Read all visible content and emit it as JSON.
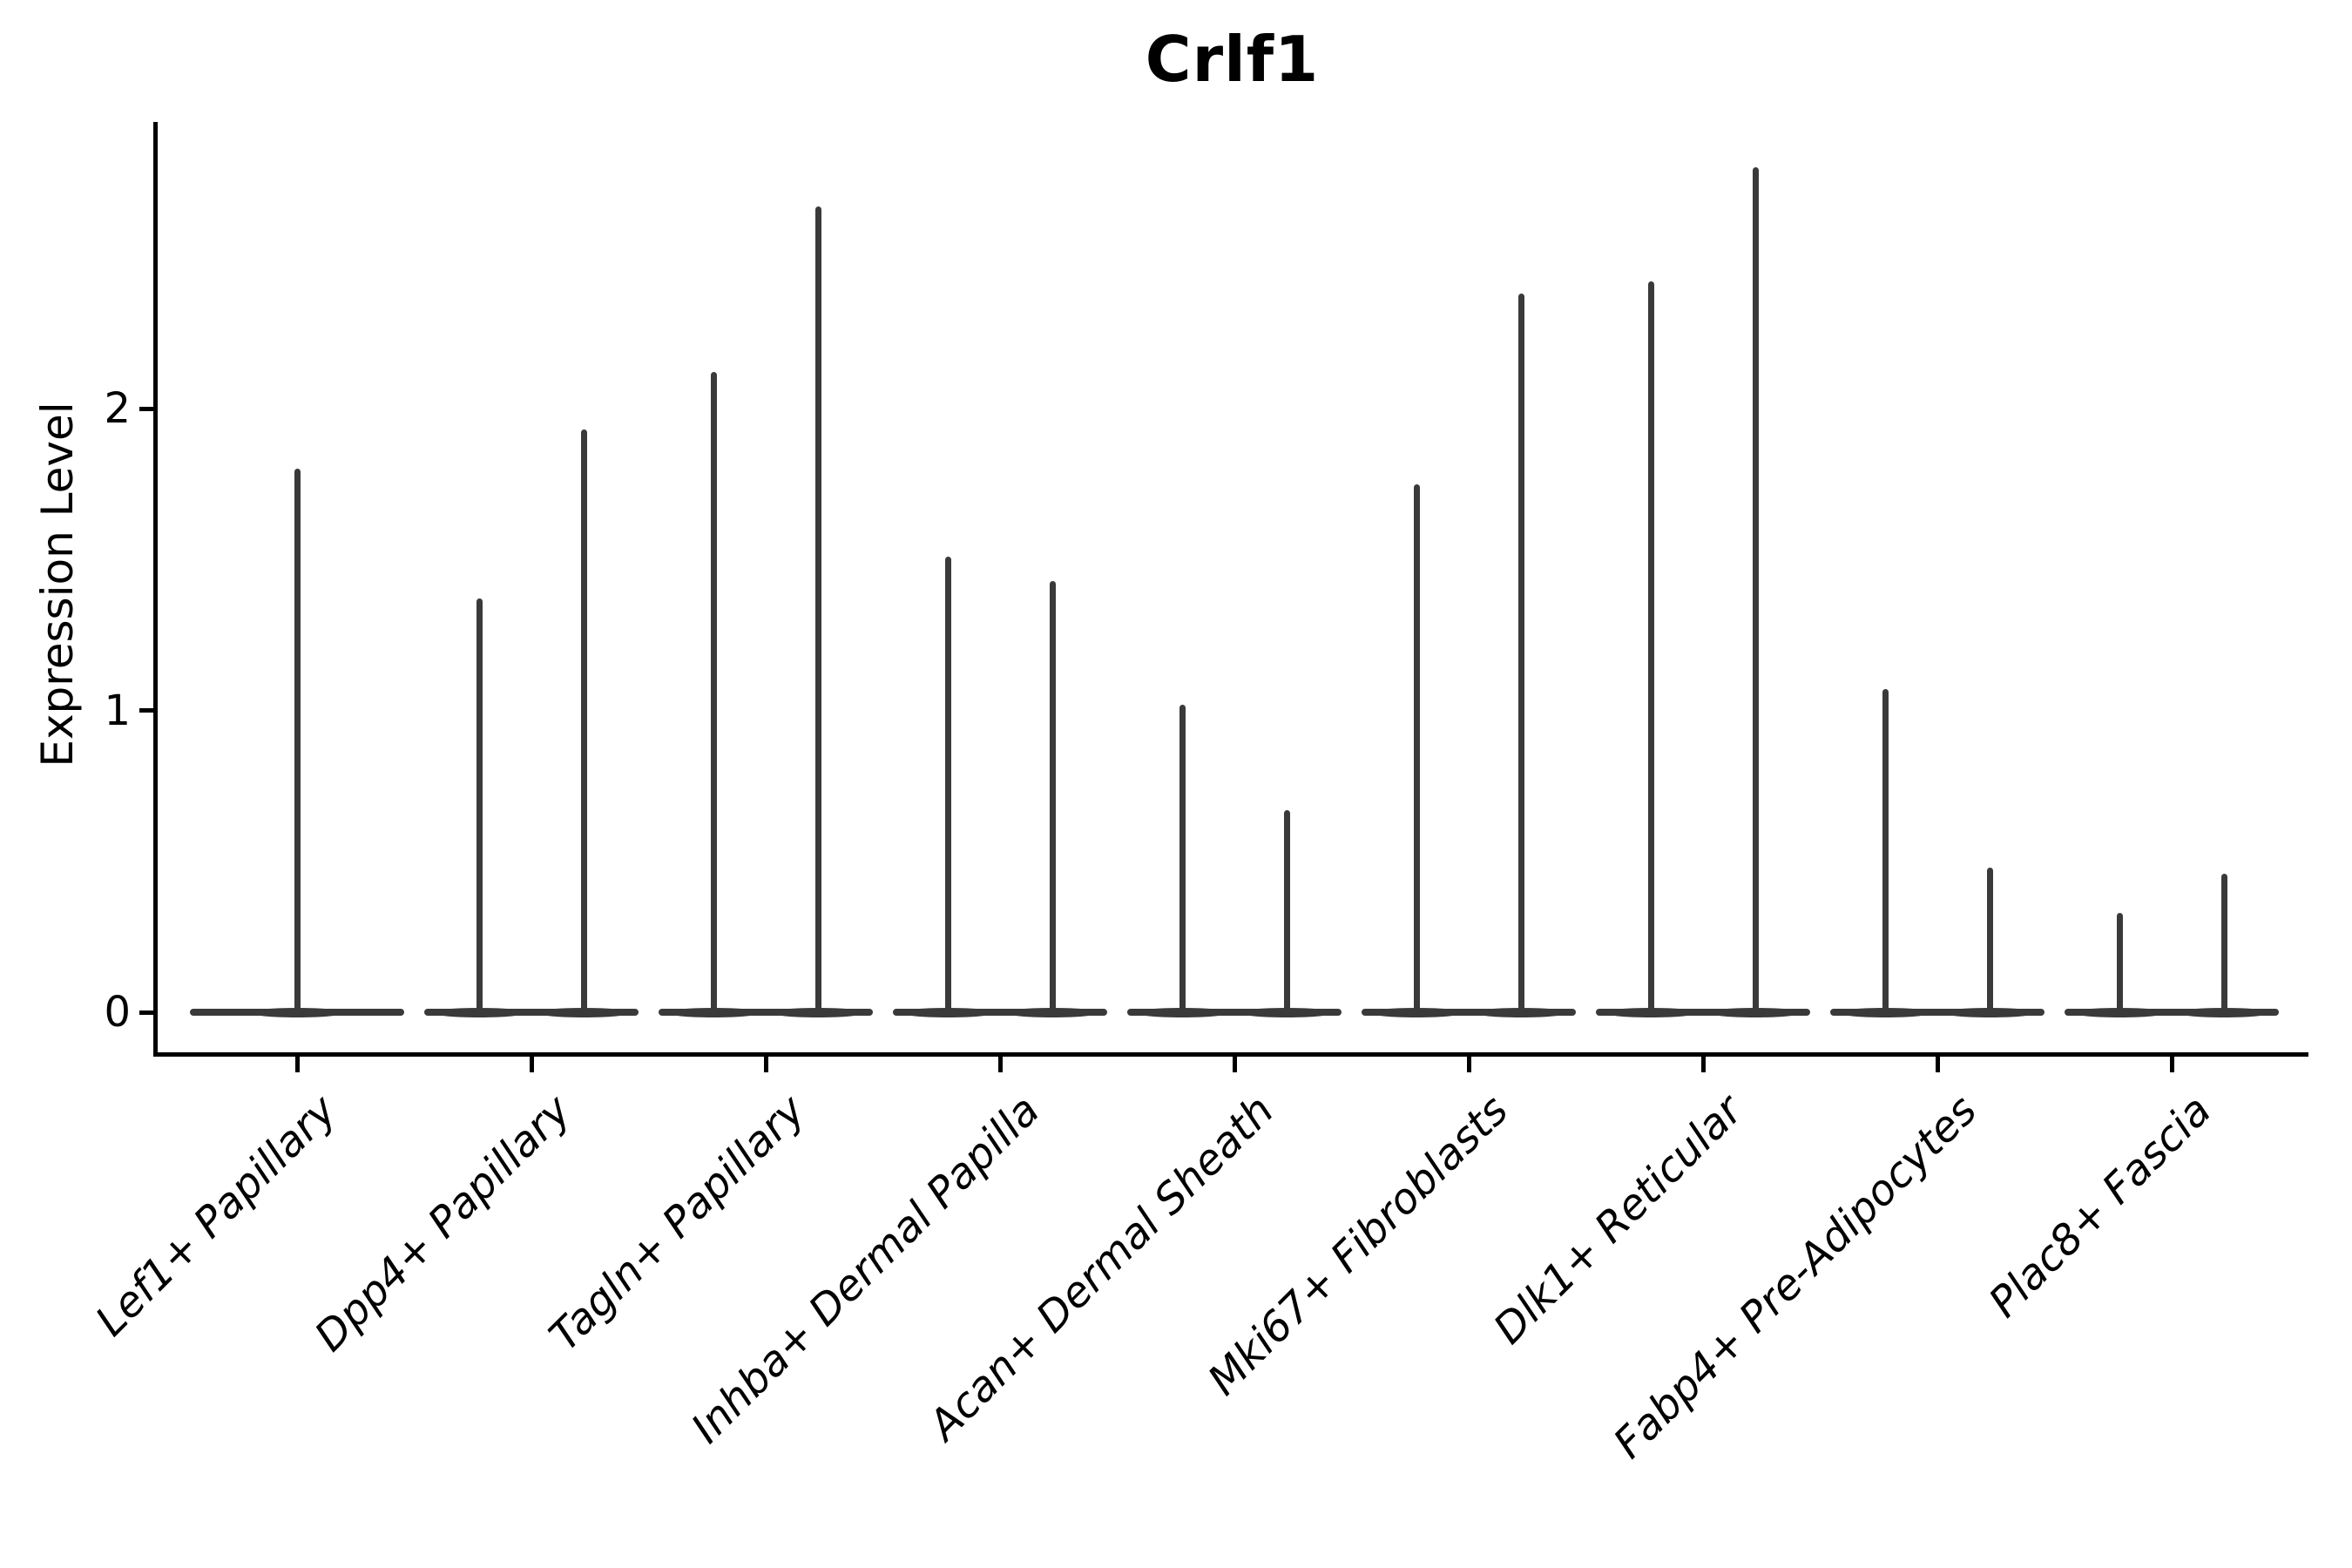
{
  "figure": {
    "background": "#ffffff"
  },
  "chart_data": {
    "type": "violin",
    "title": "Crlf1",
    "ylabel": "Expression Level",
    "xlabel": "",
    "legend": "none",
    "grid": false,
    "y_axis": {
      "ticks": [
        0,
        1,
        2
      ],
      "range": [
        0,
        2.95
      ]
    },
    "categories": [
      "Lef1+ Papillary",
      "Dpp4+ Papillary",
      "Tagln+ Papillary",
      "Inhba+ Dermal Papilla",
      "Acan+ Dermal Sheath",
      "Mki67+ Fibroblasts",
      "Dlk1+ Reticular",
      "Fabp4+ Pre-Adipocytes",
      "Plac8+ Fascia"
    ],
    "violins": [
      {
        "category": "Lef1+ Papillary",
        "spikes": [
          {
            "group": "center",
            "max": 1.8
          }
        ]
      },
      {
        "category": "Dpp4+ Papillary",
        "spikes": [
          {
            "group": "left",
            "max": 1.37
          },
          {
            "group": "right",
            "max": 1.93
          }
        ]
      },
      {
        "category": "Tagln+ Papillary",
        "spikes": [
          {
            "group": "left",
            "max": 2.12
          },
          {
            "group": "right",
            "max": 2.67
          }
        ]
      },
      {
        "category": "Inhba+ Dermal Papilla",
        "spikes": [
          {
            "group": "left",
            "max": 1.51
          },
          {
            "group": "right",
            "max": 1.43
          }
        ]
      },
      {
        "category": "Acan+ Dermal Sheath",
        "spikes": [
          {
            "group": "left",
            "max": 1.02
          },
          {
            "group": "right",
            "max": 0.67
          }
        ]
      },
      {
        "category": "Mki67+ Fibroblasts",
        "spikes": [
          {
            "group": "left",
            "max": 1.75
          },
          {
            "group": "right",
            "max": 2.38
          }
        ]
      },
      {
        "category": "Dlk1+ Reticular",
        "spikes": [
          {
            "group": "left",
            "max": 2.42
          },
          {
            "group": "right",
            "max": 2.8
          }
        ]
      },
      {
        "category": "Fabp4+ Pre-Adipocytes",
        "spikes": [
          {
            "group": "left",
            "max": 1.07
          },
          {
            "group": "right",
            "max": 0.48
          }
        ]
      },
      {
        "category": "Plac8+ Fascia",
        "spikes": [
          {
            "group": "left",
            "max": 0.33
          },
          {
            "group": "right",
            "max": 0.46
          }
        ]
      }
    ],
    "style": {
      "violin_color": "#3a3a3a",
      "axis_color": "#000000",
      "text_color": "#000000"
    }
  }
}
